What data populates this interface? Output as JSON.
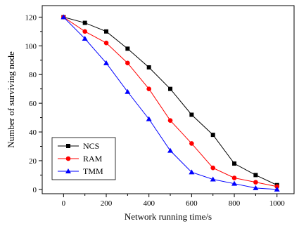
{
  "chart_data": {
    "type": "line",
    "xlabel": "Network running time/s",
    "ylabel": "Number of surviving node",
    "xlim": [
      -100,
      1080
    ],
    "ylim": [
      -3,
      128
    ],
    "x_ticks": [
      0,
      200,
      400,
      600,
      800,
      1000
    ],
    "y_ticks": [
      0,
      20,
      40,
      60,
      80,
      100,
      120
    ],
    "legend_position": "bottom-left",
    "x": [
      0,
      100,
      200,
      300,
      400,
      500,
      600,
      700,
      800,
      900,
      1000
    ],
    "series": [
      {
        "name": "NCS",
        "color": "#000000",
        "marker": "square",
        "values": [
          120,
          116,
          110,
          98,
          85,
          70,
          52,
          38,
          18,
          10,
          3
        ]
      },
      {
        "name": "RAM",
        "color": "#ff0000",
        "marker": "circle",
        "values": [
          120,
          110,
          102,
          88,
          70,
          48,
          32,
          15,
          8,
          5,
          2
        ]
      },
      {
        "name": "TMM",
        "color": "#0000ff",
        "marker": "triangle",
        "values": [
          120,
          105,
          88,
          68,
          49,
          27,
          12,
          7,
          4,
          1,
          0
        ]
      }
    ]
  }
}
